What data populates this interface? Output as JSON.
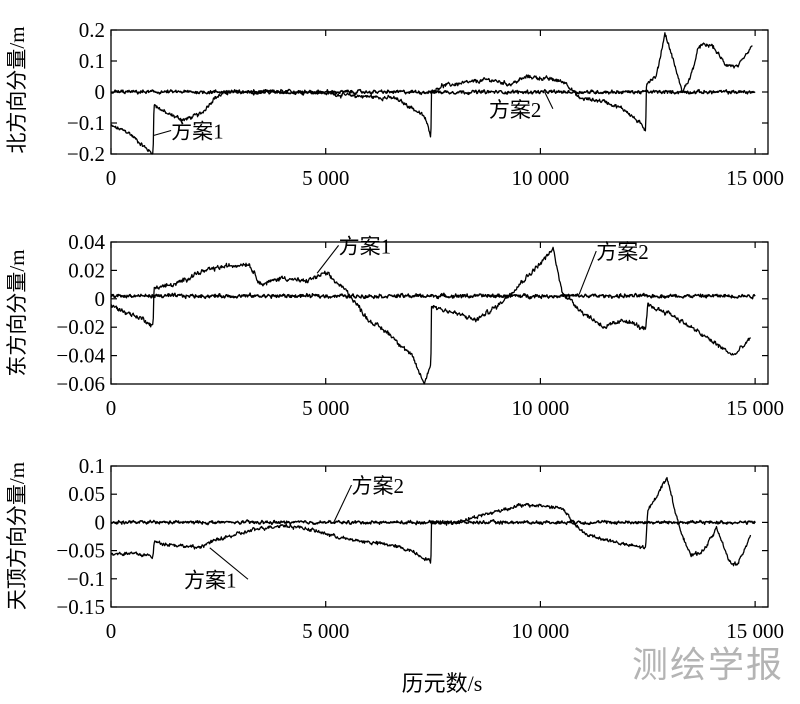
{
  "figure": {
    "x_label": "历元数/s",
    "watermark": "测绘学报"
  },
  "chart_data": [
    {
      "type": "line",
      "ylabel": "北方向分量/m",
      "xlim": [
        0,
        15300
      ],
      "ylim": [
        -0.2,
        0.2
      ],
      "x_ticks": [
        0,
        5000,
        10000,
        15000
      ],
      "x_tick_labels": [
        "0",
        "5 000",
        "10 000",
        "15 000"
      ],
      "y_ticks": [
        0.2,
        0.1,
        0,
        -0.1,
        -0.2
      ],
      "y_tick_labels": [
        "0.2",
        "0.1",
        "0",
        "−0.1",
        "−0.2"
      ],
      "grid": false,
      "annotations": [
        {
          "text": "方案1",
          "x": 1400,
          "y": -0.15,
          "arrow_to": [
            1000,
            -0.14
          ]
        },
        {
          "text": "方案2",
          "x": 8800,
          "y": -0.08,
          "arrow_to": [
            10100,
            0.0
          ]
        }
      ],
      "series": [
        {
          "name": "方案1",
          "noise": 0.006,
          "values": [
            [
              0,
              -0.11
            ],
            [
              400,
              -0.13
            ],
            [
              800,
              -0.18
            ],
            [
              980,
              -0.2
            ],
            [
              1000,
              -0.04
            ],
            [
              1300,
              -0.07
            ],
            [
              1700,
              -0.09
            ],
            [
              2100,
              -0.07
            ],
            [
              2400,
              -0.02
            ],
            [
              2700,
              0.0
            ],
            [
              3200,
              0.0
            ],
            [
              3600,
              0.0
            ],
            [
              4200,
              0.0
            ],
            [
              4800,
              0.0
            ],
            [
              5400,
              -0.01
            ],
            [
              6000,
              -0.015
            ],
            [
              6600,
              -0.02
            ],
            [
              7000,
              -0.05
            ],
            [
              7300,
              -0.08
            ],
            [
              7450,
              -0.14
            ],
            [
              7460,
              0.0
            ],
            [
              7700,
              0.02
            ],
            [
              8300,
              0.03
            ],
            [
              8800,
              0.04
            ],
            [
              9300,
              0.025
            ],
            [
              9700,
              0.05
            ],
            [
              10300,
              0.04
            ],
            [
              10600,
              0.03
            ],
            [
              10900,
              -0.02
            ],
            [
              11500,
              -0.03
            ],
            [
              12000,
              -0.06
            ],
            [
              12450,
              -0.12
            ],
            [
              12470,
              0.03
            ],
            [
              12700,
              0.05
            ],
            [
              12900,
              0.19
            ],
            [
              13100,
              0.1
            ],
            [
              13300,
              0.0
            ],
            [
              13500,
              0.05
            ],
            [
              13700,
              0.15
            ],
            [
              14000,
              0.15
            ],
            [
              14300,
              0.09
            ],
            [
              14600,
              0.08
            ],
            [
              14950,
              0.15
            ]
          ]
        },
        {
          "name": "方案2",
          "noise": 0.005,
          "values": [
            [
              0,
              0
            ],
            [
              15000,
              0
            ]
          ]
        }
      ]
    },
    {
      "type": "line",
      "ylabel": "东方向分量/m",
      "xlim": [
        0,
        15300
      ],
      "ylim": [
        -0.06,
        0.04
      ],
      "x_ticks": [
        0,
        5000,
        10000,
        15000
      ],
      "x_tick_labels": [
        "0",
        "5 000",
        "10 000",
        "15 000"
      ],
      "y_ticks": [
        0.04,
        0.02,
        0,
        -0.02,
        -0.04,
        -0.06
      ],
      "y_tick_labels": [
        "0.04",
        "0.02",
        "0",
        "−0.02",
        "−0.04",
        "−0.06"
      ],
      "grid": false,
      "annotations": [
        {
          "text": "方案1",
          "x": 5300,
          "y": 0.032,
          "arrow_to": [
            4800,
            0.018
          ]
        },
        {
          "text": "方案2",
          "x": 11300,
          "y": 0.028,
          "arrow_to": [
            10900,
            0.003
          ]
        }
      ],
      "series": [
        {
          "name": "方案1",
          "noise": 0.0015,
          "values": [
            [
              0,
              -0.005
            ],
            [
              400,
              -0.01
            ],
            [
              800,
              -0.015
            ],
            [
              980,
              -0.02
            ],
            [
              1000,
              0.008
            ],
            [
              1500,
              0.01
            ],
            [
              2000,
              0.018
            ],
            [
              2500,
              0.022
            ],
            [
              3200,
              0.025
            ],
            [
              3500,
              0.01
            ],
            [
              4000,
              0.015
            ],
            [
              4500,
              0.012
            ],
            [
              5000,
              0.018
            ],
            [
              5500,
              0.005
            ],
            [
              6000,
              -0.015
            ],
            [
              6500,
              -0.025
            ],
            [
              7000,
              -0.04
            ],
            [
              7300,
              -0.06
            ],
            [
              7450,
              -0.045
            ],
            [
              7460,
              -0.005
            ],
            [
              8000,
              -0.01
            ],
            [
              8500,
              -0.015
            ],
            [
              9000,
              -0.005
            ],
            [
              9500,
              0.01
            ],
            [
              10000,
              0.025
            ],
            [
              10300,
              0.035
            ],
            [
              10500,
              0.005
            ],
            [
              11000,
              -0.01
            ],
            [
              11500,
              -0.02
            ],
            [
              12000,
              -0.015
            ],
            [
              12450,
              -0.022
            ],
            [
              12500,
              -0.005
            ],
            [
              13000,
              -0.01
            ],
            [
              13500,
              -0.02
            ],
            [
              14000,
              -0.03
            ],
            [
              14500,
              -0.04
            ],
            [
              14900,
              -0.028
            ]
          ]
        },
        {
          "name": "方案2",
          "noise": 0.0012,
          "values": [
            [
              0,
              0.002
            ],
            [
              15000,
              0.002
            ]
          ]
        }
      ]
    },
    {
      "type": "line",
      "ylabel": "天顶方向分量/m",
      "xlim": [
        0,
        15300
      ],
      "ylim": [
        -0.15,
        0.1
      ],
      "x_ticks": [
        0,
        5000,
        10000,
        15000
      ],
      "x_tick_labels": [
        "0",
        "5 000",
        "10 000",
        "15 000"
      ],
      "y_ticks": [
        0.1,
        0.05,
        0,
        -0.05,
        -0.1,
        -0.15
      ],
      "y_tick_labels": [
        "0.1",
        "0.05",
        "0",
        "−0.05",
        "−0.1",
        "−0.15"
      ],
      "grid": false,
      "annotations": [
        {
          "text": "方案1",
          "x": 1700,
          "y": -0.115,
          "arrow_to": [
            2300,
            -0.045
          ]
        },
        {
          "text": "方案2",
          "x": 5600,
          "y": 0.052,
          "arrow_to": [
            5200,
            0.002
          ]
        }
      ],
      "series": [
        {
          "name": "方案1",
          "noise": 0.003,
          "values": [
            [
              0,
              -0.055
            ],
            [
              500,
              -0.055
            ],
            [
              980,
              -0.06
            ],
            [
              1000,
              -0.035
            ],
            [
              1500,
              -0.04
            ],
            [
              2000,
              -0.045
            ],
            [
              2500,
              -0.03
            ],
            [
              3000,
              -0.02
            ],
            [
              3500,
              -0.01
            ],
            [
              4000,
              -0.005
            ],
            [
              4500,
              -0.01
            ],
            [
              5000,
              -0.02
            ],
            [
              5500,
              -0.03
            ],
            [
              6000,
              -0.035
            ],
            [
              6500,
              -0.04
            ],
            [
              7000,
              -0.05
            ],
            [
              7450,
              -0.07
            ],
            [
              7460,
              0.0
            ],
            [
              8000,
              0.0
            ],
            [
              8500,
              0.01
            ],
            [
              9000,
              0.02
            ],
            [
              9500,
              0.03
            ],
            [
              10000,
              0.03
            ],
            [
              10500,
              0.025
            ],
            [
              11000,
              -0.02
            ],
            [
              11500,
              -0.03
            ],
            [
              12000,
              -0.04
            ],
            [
              12450,
              -0.045
            ],
            [
              12500,
              0.02
            ],
            [
              12800,
              0.06
            ],
            [
              12950,
              0.08
            ],
            [
              13200,
              0.0
            ],
            [
              13500,
              -0.06
            ],
            [
              13800,
              -0.05
            ],
            [
              14100,
              -0.01
            ],
            [
              14400,
              -0.07
            ],
            [
              14600,
              -0.075
            ],
            [
              14900,
              -0.02
            ]
          ]
        },
        {
          "name": "方案2",
          "noise": 0.0025,
          "values": [
            [
              0,
              0
            ],
            [
              15000,
              0
            ]
          ]
        }
      ]
    }
  ]
}
